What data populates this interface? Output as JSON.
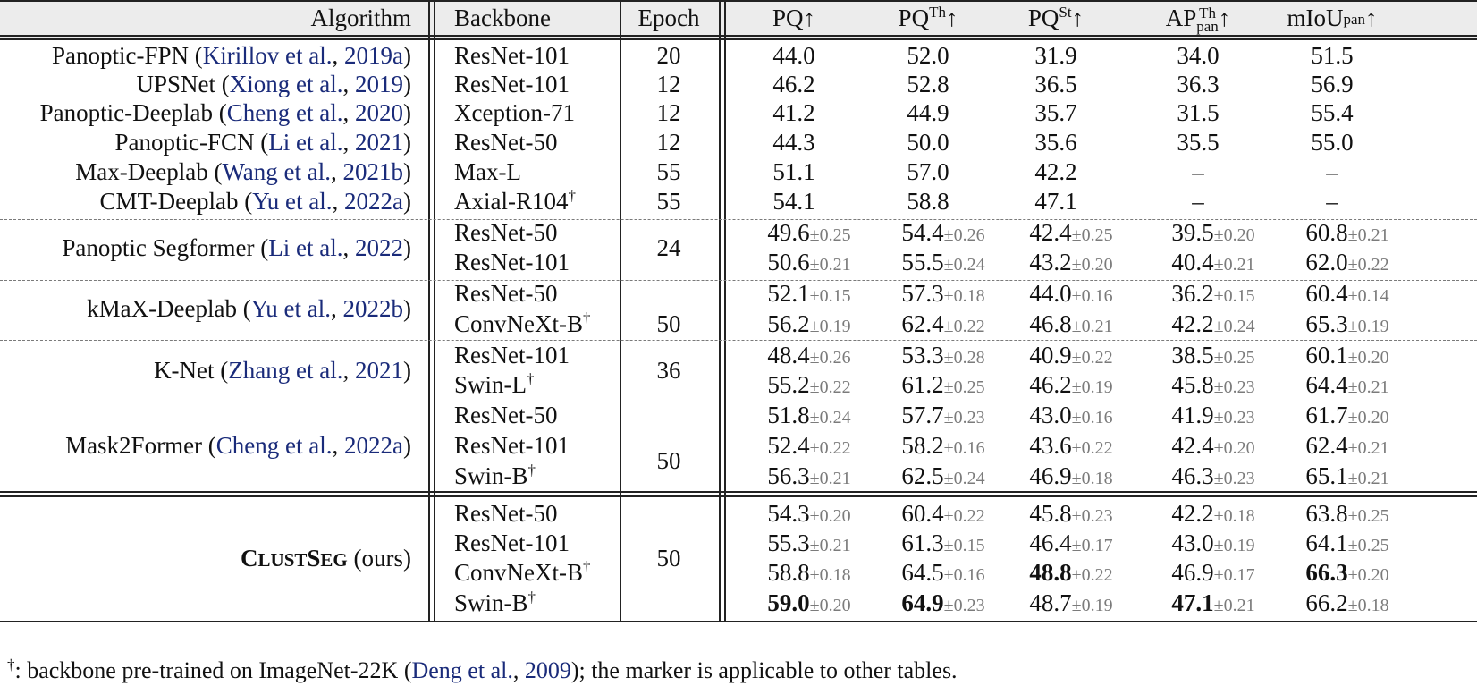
{
  "headers": {
    "algorithm": "Algorithm",
    "backbone": "Backbone",
    "epoch": "Epoch",
    "metric_base": [
      "PQ",
      "PQ",
      "PQ",
      "AP",
      "mIoU"
    ],
    "metric_sup": [
      "",
      "Th",
      "St",
      "Th",
      ""
    ],
    "metric_sub": [
      "",
      "",
      "",
      "pan",
      "pan"
    ],
    "arrow": "↑"
  },
  "groups": [
    {
      "method": "Panoptic-FPN",
      "cite_author": "Kirillov et al.",
      "cite_year": "2019a",
      "epoch": "20",
      "rows": [
        {
          "backbone": "ResNet-101",
          "dagger": "",
          "values": [
            "44.0",
            "52.0",
            "31.9",
            "34.0",
            "51.5"
          ],
          "sd": [
            "",
            "",
            "",
            "",
            ""
          ],
          "bold": [
            false,
            false,
            false,
            false,
            false
          ]
        }
      ]
    },
    {
      "method": "UPSNet",
      "cite_author": "Xiong et al.",
      "cite_year": "2019",
      "epoch": "12",
      "rows": [
        {
          "backbone": "ResNet-101",
          "dagger": "",
          "values": [
            "46.2",
            "52.8",
            "36.5",
            "36.3",
            "56.9"
          ],
          "sd": [
            "",
            "",
            "",
            "",
            ""
          ],
          "bold": [
            false,
            false,
            false,
            false,
            false
          ]
        }
      ]
    },
    {
      "method": "Panoptic-Deeplab",
      "cite_author": "Cheng et al.",
      "cite_year": "2020",
      "epoch": "12",
      "rows": [
        {
          "backbone": "Xception-71",
          "dagger": "",
          "values": [
            "41.2",
            "44.9",
            "35.7",
            "31.5",
            "55.4"
          ],
          "sd": [
            "",
            "",
            "",
            "",
            ""
          ],
          "bold": [
            false,
            false,
            false,
            false,
            false
          ]
        }
      ]
    },
    {
      "method": "Panoptic-FCN",
      "cite_author": "Li et al.",
      "cite_year": "2021",
      "epoch": "12",
      "rows": [
        {
          "backbone": "ResNet-50",
          "dagger": "",
          "values": [
            "44.3",
            "50.0",
            "35.6",
            "35.5",
            "55.0"
          ],
          "sd": [
            "",
            "",
            "",
            "",
            ""
          ],
          "bold": [
            false,
            false,
            false,
            false,
            false
          ]
        }
      ]
    },
    {
      "method": "Max-Deeplab",
      "cite_author": "Wang et al.",
      "cite_year": "2021b",
      "epoch": "55",
      "rows": [
        {
          "backbone": "Max-L",
          "dagger": "",
          "values": [
            "51.1",
            "57.0",
            "42.2",
            "–",
            "–"
          ],
          "sd": [
            "",
            "",
            "",
            "",
            ""
          ],
          "bold": [
            false,
            false,
            false,
            false,
            false
          ]
        }
      ]
    },
    {
      "method": "CMT-Deeplab",
      "cite_author": "Yu et al.",
      "cite_year": "2022a",
      "epoch": "55",
      "rows": [
        {
          "backbone": "Axial-R104",
          "dagger": "†",
          "values": [
            "54.1",
            "58.8",
            "47.1",
            "–",
            "–"
          ],
          "sd": [
            "",
            "",
            "",
            "",
            ""
          ],
          "bold": [
            false,
            false,
            false,
            false,
            false
          ]
        }
      ]
    },
    {
      "method": "Panoptic Segformer",
      "cite_author": "Li et al.",
      "cite_year": "2022",
      "epoch": "24",
      "rows": [
        {
          "backbone": "ResNet-50",
          "dagger": "",
          "values": [
            "49.6",
            "54.4",
            "42.4",
            "39.5",
            "60.8"
          ],
          "sd": [
            "±0.25",
            "±0.26",
            "±0.25",
            "±0.20",
            "±0.21"
          ],
          "bold": [
            false,
            false,
            false,
            false,
            false
          ]
        },
        {
          "backbone": "ResNet-101",
          "dagger": "",
          "values": [
            "50.6",
            "55.5",
            "43.2",
            "40.4",
            "62.0"
          ],
          "sd": [
            "±0.21",
            "±0.24",
            "±0.20",
            "±0.21",
            "±0.22"
          ],
          "bold": [
            false,
            false,
            false,
            false,
            false
          ]
        }
      ]
    },
    {
      "method": "kMaX-Deeplab",
      "cite_author": "Yu et al.",
      "cite_year": "2022b",
      "epoch": "50",
      "rows": [
        {
          "backbone": "ResNet-50",
          "dagger": "",
          "values": [
            "52.1",
            "57.3",
            "44.0",
            "36.2",
            "60.4"
          ],
          "sd": [
            "±0.15",
            "±0.18",
            "±0.16",
            "±0.15",
            "±0.14"
          ],
          "bold": [
            false,
            false,
            false,
            false,
            false
          ]
        },
        {
          "backbone": "ConvNeXt-B",
          "dagger": "†",
          "values": [
            "56.2",
            "62.4",
            "46.8",
            "42.2",
            "65.3"
          ],
          "sd": [
            "±0.19",
            "±0.22",
            "±0.21",
            "±0.24",
            "±0.19"
          ],
          "bold": [
            false,
            false,
            false,
            false,
            false
          ]
        }
      ]
    },
    {
      "method": "K-Net",
      "cite_author": "Zhang et al.",
      "cite_year": "2021",
      "epoch": "36",
      "rows": [
        {
          "backbone": "ResNet-101",
          "dagger": "",
          "values": [
            "48.4",
            "53.3",
            "40.9",
            "38.5",
            "60.1"
          ],
          "sd": [
            "±0.26",
            "±0.28",
            "±0.22",
            "±0.25",
            "±0.20"
          ],
          "bold": [
            false,
            false,
            false,
            false,
            false
          ]
        },
        {
          "backbone": "Swin-L",
          "dagger": "†",
          "values": [
            "55.2",
            "61.2",
            "46.2",
            "45.8",
            "64.4"
          ],
          "sd": [
            "±0.22",
            "±0.25",
            "±0.19",
            "±0.23",
            "±0.21"
          ],
          "bold": [
            false,
            false,
            false,
            false,
            false
          ]
        }
      ]
    },
    {
      "method": "Mask2Former",
      "cite_author": "Cheng et al.",
      "cite_year": "2022a",
      "epoch": "50",
      "rows": [
        {
          "backbone": "ResNet-50",
          "dagger": "",
          "values": [
            "51.8",
            "57.7",
            "43.0",
            "41.9",
            "61.7"
          ],
          "sd": [
            "±0.24",
            "±0.23",
            "±0.16",
            "±0.23",
            "±0.20"
          ],
          "bold": [
            false,
            false,
            false,
            false,
            false
          ]
        },
        {
          "backbone": "ResNet-101",
          "dagger": "",
          "values": [
            "52.4",
            "58.2",
            "43.6",
            "42.4",
            "62.4"
          ],
          "sd": [
            "±0.22",
            "±0.16",
            "±0.22",
            "±0.20",
            "±0.21"
          ],
          "bold": [
            false,
            false,
            false,
            false,
            false
          ]
        },
        {
          "backbone": "Swin-B",
          "dagger": "†",
          "values": [
            "56.3",
            "62.5",
            "46.9",
            "46.3",
            "65.1"
          ],
          "sd": [
            "±0.21",
            "±0.24",
            "±0.18",
            "±0.23",
            "±0.21"
          ],
          "bold": [
            false,
            false,
            false,
            false,
            false
          ]
        }
      ]
    }
  ],
  "ours": {
    "method_first_big": "C",
    "method_small": "LUST",
    "method_second_big": "S",
    "method_small2": "EG",
    "suffix": " (ours)",
    "epoch": "50",
    "rows": [
      {
        "backbone": "ResNet-50",
        "dagger": "",
        "values": [
          "54.3",
          "60.4",
          "45.8",
          "42.2",
          "63.8"
        ],
        "sd": [
          "±0.20",
          "±0.22",
          "±0.23",
          "±0.18",
          "±0.25"
        ],
        "bold": [
          false,
          false,
          false,
          false,
          false
        ]
      },
      {
        "backbone": "ResNet-101",
        "dagger": "",
        "values": [
          "55.3",
          "61.3",
          "46.4",
          "43.0",
          "64.1"
        ],
        "sd": [
          "±0.21",
          "±0.15",
          "±0.17",
          "±0.19",
          "±0.25"
        ],
        "bold": [
          false,
          false,
          false,
          false,
          false
        ]
      },
      {
        "backbone": "ConvNeXt-B",
        "dagger": "†",
        "values": [
          "58.8",
          "64.5",
          "48.8",
          "46.9",
          "66.3"
        ],
        "sd": [
          "±0.18",
          "±0.16",
          "±0.22",
          "±0.17",
          "±0.20"
        ],
        "bold": [
          false,
          false,
          true,
          false,
          true
        ]
      },
      {
        "backbone": "Swin-B",
        "dagger": "†",
        "values": [
          "59.0",
          "64.9",
          "48.7",
          "47.1",
          "66.2"
        ],
        "sd": [
          "±0.20",
          "±0.23",
          "±0.19",
          "±0.21",
          "±0.18"
        ],
        "bold": [
          true,
          true,
          false,
          true,
          false
        ]
      }
    ]
  },
  "footnote": {
    "dagger": "†",
    "text_before": ": backbone pre-trained on ImageNet-22K (",
    "cite_author": "Deng et al.",
    "cite_year": "2009",
    "text_after": "); the marker is applicable to other tables."
  },
  "colors": {
    "citation": "#1a2b7a",
    "std": "#7b7b7b",
    "header_bg": "#ececec"
  }
}
